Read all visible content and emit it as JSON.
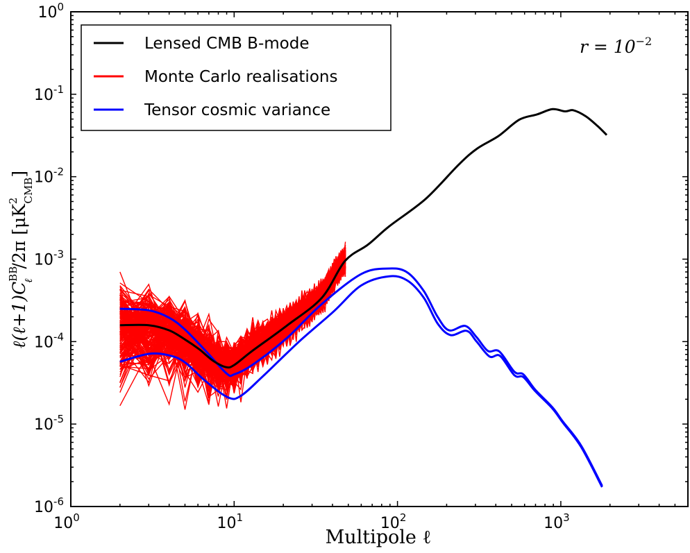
{
  "chart_data": {
    "type": "line",
    "xscale": "log",
    "yscale": "log",
    "xlim": [
      1,
      6000
    ],
    "ylim": [
      1e-06,
      1
    ],
    "xlabel": "Multipole ℓ",
    "ylabel": "ℓ(ℓ+1)C_ℓ^BB/2π [μK²_CMB]",
    "ylabel_parts": {
      "main": "ℓ(ℓ+1)C",
      "sub": "ℓ",
      "sup": "BB",
      "after": "/2π [μK",
      "unit_sup": "2",
      "unit_sub": "CMB",
      "close": "]"
    },
    "annotation": {
      "text": "r = 10",
      "exp": "−2"
    },
    "x_ticks": [
      {
        "base": "10",
        "exp": "0",
        "value": 1
      },
      {
        "base": "10",
        "exp": "1",
        "value": 10
      },
      {
        "base": "10",
        "exp": "2",
        "value": 100
      },
      {
        "base": "10",
        "exp": "3",
        "value": 1000
      }
    ],
    "y_ticks": [
      {
        "base": "10",
        "exp": "0",
        "value": 1
      },
      {
        "base": "10",
        "exp": "-1",
        "value": 0.1
      },
      {
        "base": "10",
        "exp": "-2",
        "value": 0.01
      },
      {
        "base": "10",
        "exp": "-3",
        "value": 0.001
      },
      {
        "base": "10",
        "exp": "-4",
        "value": 0.0001
      },
      {
        "base": "10",
        "exp": "-5",
        "value": 1e-05
      },
      {
        "base": "10",
        "exp": "-6",
        "value": 1e-06
      }
    ],
    "legend": {
      "placement": "upper-left"
    },
    "series": [
      {
        "name": "Lensed CMB B-mode",
        "color": "#000000",
        "x": [
          2,
          3,
          4,
          5,
          6.1,
          7.4,
          8.9,
          10,
          12.9,
          21,
          34.4,
          47.7,
          66,
          89,
          149,
          237,
          308,
          414,
          556,
          717,
          889,
          1061,
          1194,
          1423,
          1681,
          1910
        ],
        "y": [
          0.000158,
          0.000158,
          0.000137,
          0.000106,
          8.1e-05,
          5.9e-05,
          4.9e-05,
          5.2e-05,
          7.7e-05,
          0.000156,
          0.00034,
          0.00095,
          0.0015,
          0.0025,
          0.0054,
          0.014,
          0.022,
          0.031,
          0.049,
          0.057,
          0.066,
          0.062,
          0.064,
          0.054,
          0.041,
          0.032
        ]
      },
      {
        "name": "Monte Carlo realisations",
        "color": "#ff0000",
        "l_min": 2,
        "l_max": 48
      },
      {
        "name": "Tensor cosmic variance",
        "color": "#0000ff",
        "bands": [
          {
            "x": [
              2,
              3,
              4,
              5,
              6.7,
              9,
              10,
              12.9,
              21,
              34,
              60,
              89,
              115,
              145,
              176,
              207,
              260,
              305,
              358,
              420,
              520,
              590,
              698,
              887,
              1030,
              1330,
              1790
            ],
            "y": [
              0.00025,
              0.00024,
              0.000195,
              0.00014,
              7.7e-05,
              4.1e-05,
              4e-05,
              5.2e-05,
              0.00011,
              0.00028,
              0.00066,
              0.00077,
              0.00069,
              0.00041,
              0.0002,
              0.000137,
              0.000155,
              0.000113,
              7.7e-05,
              7.6e-05,
              4.3e-05,
              4e-05,
              2.6e-05,
              1.6e-05,
              1.07e-05,
              5.5e-06,
              1.78e-06
            ]
          },
          {
            "x": [
              2,
              3,
              4,
              5,
              6.7,
              9.2,
              11,
              15,
              25,
              40.5,
              60,
              89,
              115,
              145,
              176,
              211,
              265,
              305,
              366,
              425,
              520,
              590,
              698,
              887,
              1030,
              1330,
              1790
            ],
            "y": [
              5.7e-05,
              7.1e-05,
              6.8e-05,
              5.6e-05,
              3.3e-05,
              2.1e-05,
              2.2e-05,
              3.8e-05,
              0.0001,
              0.00023,
              0.00048,
              0.00062,
              0.00055,
              0.00034,
              0.000166,
              0.00012,
              0.000135,
              0.0001,
              6.6e-05,
              6.7e-05,
              3.9e-05,
              3.7e-05,
              2.5e-05,
              1.55e-05,
              1.04e-05,
              5.3e-06,
              1.72e-06
            ]
          }
        ]
      }
    ]
  }
}
